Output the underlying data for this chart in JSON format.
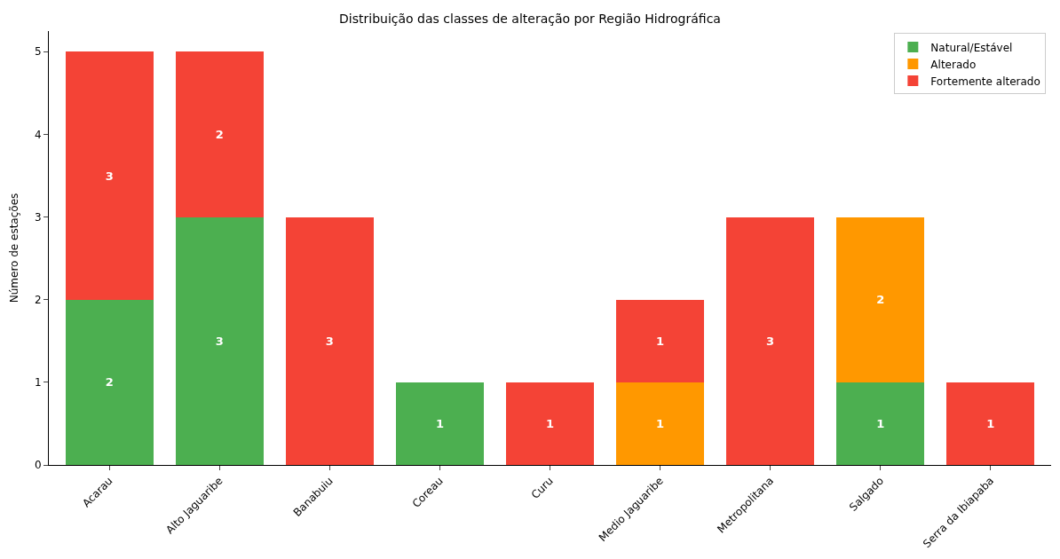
{
  "chart_data": {
    "type": "bar",
    "title": "Distribuição das classes de alteração por Região Hidrográfica",
    "ylabel": "Número de estações",
    "categories": [
      "Acarau",
      "Alto Jaguaribe",
      "Banabuiu",
      "Coreau",
      "Curu",
      "Medio Jaguaribe",
      "Metropolitana",
      "Salgado",
      "Serra da Ibiapaba"
    ],
    "series": [
      {
        "name": "Natural/Estável",
        "color": "#4caf50",
        "values": [
          2,
          3,
          null,
          1,
          null,
          null,
          null,
          1,
          null
        ]
      },
      {
        "name": "Alterado",
        "color": "#ff9800",
        "values": [
          null,
          null,
          null,
          null,
          null,
          1,
          null,
          2,
          null
        ]
      },
      {
        "name": "Fortemente alterado",
        "color": "#f44336",
        "values": [
          3,
          2,
          3,
          null,
          1,
          1,
          3,
          null,
          1
        ]
      }
    ],
    "stacked": true,
    "data_labels": true,
    "ylim": [
      0,
      5.25
    ],
    "yticks": [
      0,
      1,
      2,
      3,
      4,
      5
    ],
    "legend": "top right"
  }
}
